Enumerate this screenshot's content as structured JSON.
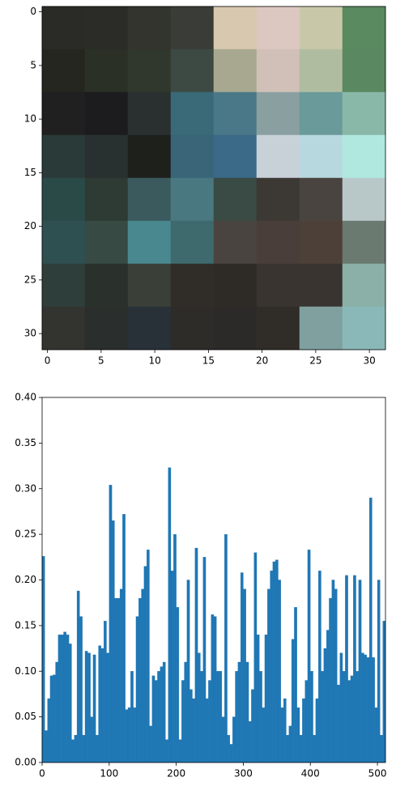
{
  "chart_data": [
    {
      "type": "image",
      "xlim": [
        -0.5,
        31.5
      ],
      "ylim": [
        31.5,
        -0.5
      ],
      "xticks": [
        0,
        5,
        10,
        15,
        20,
        25,
        30
      ],
      "yticks": [
        0,
        5,
        10,
        15,
        20,
        25,
        30
      ],
      "pixels": [
        [
          "#2a2b26",
          "#2b2c28",
          "#33342e",
          "#3a3d37",
          "#d8c8b0",
          "#dcc8c0",
          "#c8c8a8",
          "#5a8a60"
        ],
        [
          "#252620",
          "#2a3026",
          "#30372c",
          "#3d4a44",
          "#a8a890",
          "#d0c0b8",
          "#b0bca0",
          "#5a8860"
        ],
        [
          "#202020",
          "#1c1c1e",
          "#2a3030",
          "#3a6a78",
          "#4a7888",
          "#8aa0a0",
          "#6a9a9a",
          "#8ab8a8"
        ],
        [
          "#2a3a38",
          "#283030",
          "#1e201c",
          "#3a6478",
          "#3a6a88",
          "#c8d0d8",
          "#b8d8e0",
          "#b0e8e0"
        ],
        [
          "#2a4a48",
          "#2e3a34",
          "#3a5a5e",
          "#4a7880",
          "#3a4a44",
          "#3c3834",
          "#4a4440",
          "#b8c8c8"
        ],
        [
          "#2e5050",
          "#384a44",
          "#4a8890",
          "#3e6a6e",
          "#4a4440",
          "#4a3e3a",
          "#4c4038",
          "#6a7a70"
        ],
        [
          "#2e3e3a",
          "#2a302c",
          "#3a4038",
          "#302c28",
          "#2e2a26",
          "#3a3430",
          "#3a3430",
          "#8ab0a8"
        ],
        [
          "#333430",
          "#2a2e2c",
          "#283038",
          "#2e2c28",
          "#2c2a28",
          "#302c28",
          "#80a0a0",
          "#8ab8b8"
        ]
      ]
    },
    {
      "type": "histogram",
      "color": "#1f77b4",
      "xlim": [
        0,
        512
      ],
      "ylim": [
        0,
        0.4
      ],
      "xticks": [
        0,
        100,
        200,
        300,
        400,
        500
      ],
      "yticks": [
        {
          "value": 0,
          "label": "0.00"
        },
        {
          "value": 0.05,
          "label": "0.05"
        },
        {
          "value": 0.1,
          "label": "0.10"
        },
        {
          "value": 0.15,
          "label": "0.15"
        },
        {
          "value": 0.2,
          "label": "0.20"
        },
        {
          "value": 0.25,
          "label": "0.25"
        },
        {
          "value": 0.3,
          "label": "0.30"
        },
        {
          "value": 0.35,
          "label": "0.35"
        },
        {
          "value": 0.4,
          "label": "0.40"
        }
      ],
      "bins": [
        0,
        4,
        8,
        12,
        16,
        20,
        24,
        28,
        32,
        36,
        40,
        44,
        48,
        52,
        56,
        60,
        64,
        68,
        72,
        76,
        80,
        84,
        88,
        92,
        96,
        100,
        104,
        108,
        112,
        116,
        120,
        124,
        128,
        132,
        136,
        140,
        144,
        148,
        152,
        156,
        160,
        164,
        168,
        172,
        176,
        180,
        184,
        188,
        192,
        196,
        200,
        204,
        208,
        212,
        216,
        220,
        224,
        228,
        232,
        236,
        240,
        244,
        248,
        252,
        256,
        260,
        264,
        268,
        272,
        276,
        280,
        284,
        288,
        292,
        296,
        300,
        304,
        308,
        312,
        316,
        320,
        324,
        328,
        332,
        336,
        340,
        344,
        348,
        352,
        356,
        360,
        364,
        368,
        372,
        376,
        380,
        384,
        388,
        392,
        396,
        400,
        404,
        408,
        412,
        416,
        420,
        424,
        428,
        432,
        436,
        440,
        444,
        448,
        452,
        456,
        460,
        464,
        468,
        472,
        476,
        480,
        484,
        488,
        492,
        496,
        500,
        504,
        508,
        512
      ],
      "values": [
        0.226,
        0.035,
        0.07,
        0.095,
        0.096,
        0.11,
        0.14,
        0.14,
        0.143,
        0.14,
        0.13,
        0.025,
        0.03,
        0.188,
        0.16,
        0.03,
        0.122,
        0.12,
        0.05,
        0.118,
        0.03,
        0.128,
        0.125,
        0.155,
        0.12,
        0.304,
        0.265,
        0.18,
        0.18,
        0.19,
        0.272,
        0.058,
        0.06,
        0.1,
        0.06,
        0.16,
        0.18,
        0.19,
        0.215,
        0.233,
        0.04,
        0.095,
        0.09,
        0.1,
        0.105,
        0.11,
        0.025,
        0.323,
        0.21,
        0.25,
        0.17,
        0.025,
        0.09,
        0.11,
        0.2,
        0.08,
        0.07,
        0.235,
        0.12,
        0.1,
        0.225,
        0.07,
        0.09,
        0.162,
        0.16,
        0.1,
        0.1,
        0.05,
        0.25,
        0.03,
        0.02,
        0.05,
        0.1,
        0.11,
        0.208,
        0.19,
        0.11,
        0.045,
        0.08,
        0.23,
        0.14,
        0.1,
        0.06,
        0.14,
        0.19,
        0.21,
        0.22,
        0.222,
        0.2,
        0.06,
        0.07,
        0.03,
        0.04,
        0.135,
        0.17,
        0.06,
        0.03,
        0.07,
        0.09,
        0.233,
        0.1,
        0.03,
        0.07,
        0.21,
        0.1,
        0.125,
        0.145,
        0.18,
        0.2,
        0.19,
        0.085,
        0.12,
        0.1,
        0.205,
        0.09,
        0.095,
        0.205,
        0.1,
        0.2,
        0.12,
        0.118,
        0.115,
        0.29,
        0.115,
        0.06,
        0.2,
        0.03,
        0.155
      ]
    }
  ]
}
